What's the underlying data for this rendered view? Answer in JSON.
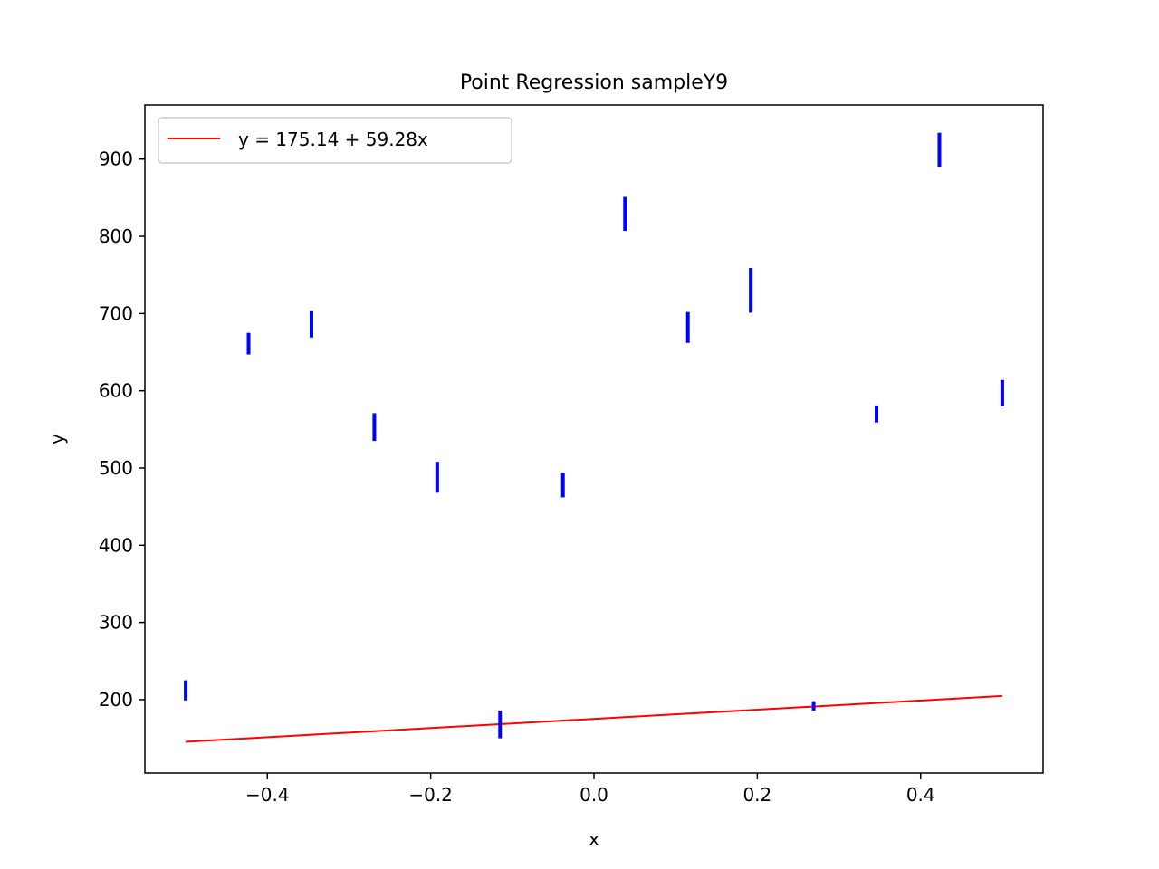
{
  "chart_data": {
    "type": "scatter",
    "title": "Point Regression sampleY9",
    "xlabel": "x",
    "ylabel": "y",
    "xlim": [
      -0.55,
      0.55
    ],
    "ylim": [
      105,
      970
    ],
    "xticks": [
      -0.4,
      -0.2,
      0.0,
      0.2,
      0.4
    ],
    "xtick_labels": [
      "−0.4",
      "−0.2",
      "0.0",
      "0.2",
      "0.4"
    ],
    "yticks": [
      200,
      300,
      400,
      500,
      600,
      700,
      800,
      900
    ],
    "ytick_labels": [
      "200",
      "300",
      "400",
      "500",
      "600",
      "700",
      "800",
      "900"
    ],
    "grid": false,
    "legend_position": "top-left",
    "points": [
      {
        "x": -0.5,
        "y": 212,
        "err": 13
      },
      {
        "x": -0.423,
        "y": 661,
        "err": 14
      },
      {
        "x": -0.346,
        "y": 686,
        "err": 17
      },
      {
        "x": -0.269,
        "y": 553,
        "err": 18
      },
      {
        "x": -0.192,
        "y": 488,
        "err": 20
      },
      {
        "x": -0.115,
        "y": 168,
        "err": 18
      },
      {
        "x": -0.038,
        "y": 478,
        "err": 16
      },
      {
        "x": 0.038,
        "y": 829,
        "err": 22
      },
      {
        "x": 0.115,
        "y": 682,
        "err": 20
      },
      {
        "x": 0.192,
        "y": 730,
        "err": 29
      },
      {
        "x": 0.269,
        "y": 192,
        "err": 6
      },
      {
        "x": 0.346,
        "y": 570,
        "err": 11
      },
      {
        "x": 0.423,
        "y": 912,
        "err": 22
      },
      {
        "x": 0.5,
        "y": 597,
        "err": 17
      }
    ],
    "regression": {
      "name": "y = 175.14 + 59.28x",
      "intercept": 175.14,
      "slope": 59.28,
      "x_range": [
        -0.5,
        0.5
      ]
    },
    "colors": {
      "points": "#0000ff",
      "line": "#ff0000",
      "axes": "#000000"
    }
  }
}
